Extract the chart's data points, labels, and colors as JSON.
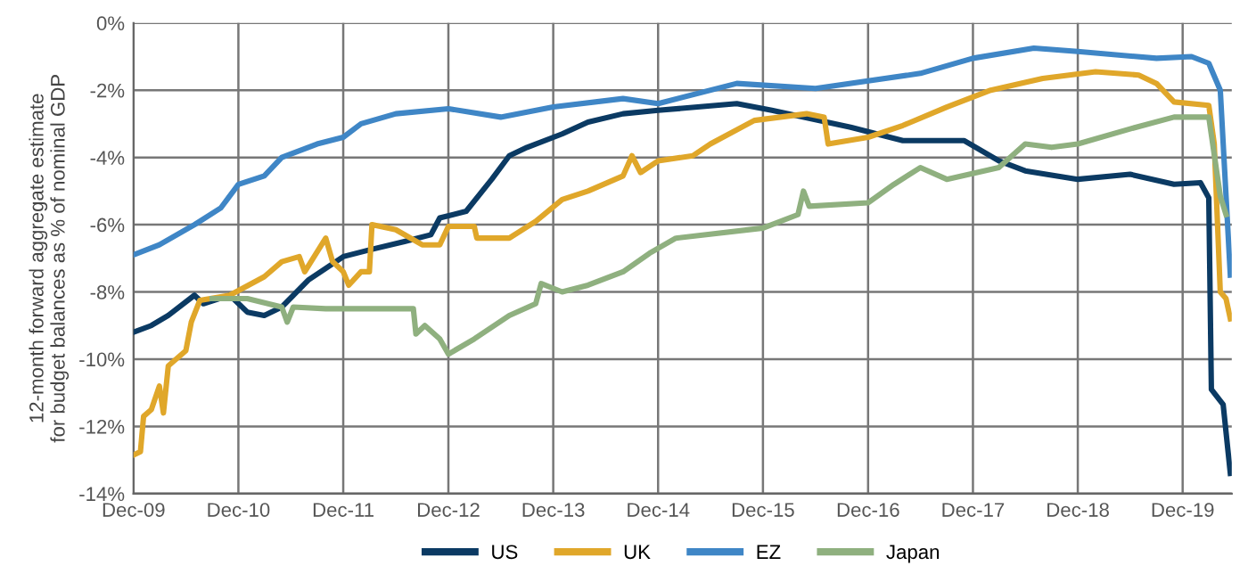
{
  "chart_data": {
    "type": "line",
    "ylabel": "12-month forward aggregate estimate\nfor budget balances as % of nominal GDP",
    "xlim": [
      "2009-12-01",
      "2020-05-20"
    ],
    "xticks": [
      {
        "value": "2009-12-01",
        "label": "Dec-09"
      },
      {
        "value": "2010-12-01",
        "label": "Dec-10"
      },
      {
        "value": "2011-12-01",
        "label": "Dec-11"
      },
      {
        "value": "2012-12-01",
        "label": "Dec-12"
      },
      {
        "value": "2013-12-01",
        "label": "Dec-13"
      },
      {
        "value": "2014-12-01",
        "label": "Dec-14"
      },
      {
        "value": "2015-12-01",
        "label": "Dec-15"
      },
      {
        "value": "2016-12-01",
        "label": "Dec-16"
      },
      {
        "value": "2017-12-01",
        "label": "Dec-17"
      },
      {
        "value": "2018-12-01",
        "label": "Dec-18"
      },
      {
        "value": "2019-12-01",
        "label": "Dec-19"
      }
    ],
    "ylim": [
      -14,
      0
    ],
    "yticks": [
      {
        "value": -14,
        "label": "-14%"
      },
      {
        "value": -12,
        "label": "-12%"
      },
      {
        "value": -10,
        "label": "-10%"
      },
      {
        "value": -8,
        "label": "-8%"
      },
      {
        "value": -6,
        "label": "-6%"
      },
      {
        "value": -4,
        "label": "-4%"
      },
      {
        "value": -2,
        "label": "-2%"
      },
      {
        "value": 0,
        "label": "0%"
      }
    ],
    "grid": true,
    "legend": "bottom",
    "marker": "none",
    "line_style": "solid",
    "series": [
      {
        "name": "US",
        "color": "#0b3a63",
        "x": [
          "2009-12-01",
          "2010-02-01",
          "2010-04-01",
          "2010-07-01",
          "2010-08-01",
          "2010-11-01",
          "2011-01-01",
          "2011-03-01",
          "2011-05-01",
          "2011-08-01",
          "2011-12-01",
          "2012-03-01",
          "2012-07-01",
          "2012-10-01",
          "2012-11-01",
          "2013-02-01",
          "2013-05-01",
          "2013-07-01",
          "2013-09-01",
          "2014-01-01",
          "2014-04-01",
          "2014-08-01",
          "2014-12-01",
          "2015-09-01",
          "2016-01-01",
          "2016-10-01",
          "2017-04-01",
          "2017-11-01",
          "2018-03-01",
          "2018-06-01",
          "2018-12-01",
          "2019-06-01",
          "2019-11-01",
          "2020-02-01",
          "2020-03-01",
          "2020-03-10",
          "2020-04-20",
          "2020-05-15"
        ],
        "values": [
          -9.2,
          -9.0,
          -8.7,
          -8.1,
          -8.35,
          -8.1,
          -8.6,
          -8.7,
          -8.45,
          -7.65,
          -6.95,
          -6.75,
          -6.5,
          -6.3,
          -5.8,
          -5.6,
          -4.65,
          -3.95,
          -3.7,
          -3.3,
          -2.95,
          -2.7,
          -2.6,
          -2.4,
          -2.6,
          -3.1,
          -3.5,
          -3.5,
          -4.1,
          -4.4,
          -4.65,
          -4.5,
          -4.8,
          -4.75,
          -5.2,
          -10.9,
          -11.35,
          -13.4
        ]
      },
      {
        "name": "UK",
        "color": "#e0a72a",
        "x": [
          "2009-12-01",
          "2009-12-25",
          "2010-01-05",
          "2010-02-01",
          "2010-03-01",
          "2010-03-15",
          "2010-04-01",
          "2010-06-01",
          "2010-06-20",
          "2010-07-20",
          "2010-11-01",
          "2011-03-01",
          "2011-05-01",
          "2011-07-01",
          "2011-07-20",
          "2011-10-01",
          "2011-10-25",
          "2011-12-01",
          "2011-12-20",
          "2012-02-01",
          "2012-03-01",
          "2012-03-10",
          "2012-06-01",
          "2012-09-01",
          "2012-11-01",
          "2012-12-01",
          "2013-03-01",
          "2013-03-10",
          "2013-07-01",
          "2013-10-01",
          "2014-01-01",
          "2014-04-01",
          "2014-08-01",
          "2014-09-01",
          "2014-10-01",
          "2014-12-01",
          "2015-04-01",
          "2015-06-01",
          "2015-11-01",
          "2016-05-01",
          "2016-07-01",
          "2016-07-15",
          "2016-12-01",
          "2017-04-01",
          "2017-09-01",
          "2018-02-01",
          "2018-08-01",
          "2019-02-01",
          "2019-07-01",
          "2019-09-01",
          "2019-11-01",
          "2020-03-01",
          "2020-03-20",
          "2020-04-10",
          "2020-04-30",
          "2020-05-15"
        ],
        "values": [
          -12.85,
          -12.75,
          -11.7,
          -11.5,
          -10.8,
          -11.6,
          -10.2,
          -9.75,
          -8.9,
          -8.25,
          -8.1,
          -7.55,
          -7.1,
          -6.95,
          -7.4,
          -6.4,
          -7.1,
          -7.4,
          -7.8,
          -7.4,
          -7.4,
          -6.0,
          -6.15,
          -6.6,
          -6.6,
          -6.05,
          -6.05,
          -6.4,
          -6.4,
          -5.9,
          -5.25,
          -5.0,
          -4.55,
          -3.95,
          -4.45,
          -4.1,
          -3.95,
          -3.6,
          -2.9,
          -2.7,
          -2.8,
          -3.6,
          -3.4,
          -3.05,
          -2.5,
          -2.0,
          -1.65,
          -1.45,
          -1.55,
          -1.8,
          -2.35,
          -2.45,
          -3.6,
          -8.0,
          -8.2,
          -8.8
        ]
      },
      {
        "name": "EZ",
        "color": "#3f86c6",
        "x": [
          "2009-12-01",
          "2010-03-01",
          "2010-07-01",
          "2010-10-01",
          "2010-12-01",
          "2011-03-01",
          "2011-05-01",
          "2011-09-01",
          "2011-12-01",
          "2012-02-01",
          "2012-06-01",
          "2012-12-01",
          "2013-06-01",
          "2013-12-01",
          "2014-08-01",
          "2014-12-01",
          "2015-09-01",
          "2016-06-01",
          "2017-06-01",
          "2017-12-01",
          "2018-07-01",
          "2018-12-01",
          "2019-09-01",
          "2020-01-01",
          "2020-03-01",
          "2020-04-10",
          "2020-05-15"
        ],
        "values": [
          -6.9,
          -6.6,
          -6.0,
          -5.5,
          -4.8,
          -4.55,
          -4.0,
          -3.6,
          -3.4,
          -3.0,
          -2.7,
          -2.55,
          -2.8,
          -2.5,
          -2.25,
          -2.4,
          -1.8,
          -1.95,
          -1.5,
          -1.05,
          -0.75,
          -0.85,
          -1.05,
          -1.0,
          -1.2,
          -2.0,
          -7.5
        ]
      },
      {
        "name": "Japan",
        "color": "#8fb07f",
        "x": [
          "2010-09-01",
          "2011-01-01",
          "2011-05-01",
          "2011-05-20",
          "2011-06-10",
          "2011-10-01",
          "2012-08-01",
          "2012-08-10",
          "2012-09-10",
          "2012-11-01",
          "2012-12-01",
          "2013-03-01",
          "2013-07-01",
          "2013-10-01",
          "2013-10-20",
          "2014-01-01",
          "2014-04-01",
          "2014-08-01",
          "2014-11-01",
          "2015-02-01",
          "2015-12-01",
          "2016-04-01",
          "2016-04-20",
          "2016-05-10",
          "2016-12-01",
          "2017-03-01",
          "2017-06-01",
          "2017-09-01",
          "2018-03-01",
          "2018-06-01",
          "2018-09-01",
          "2018-12-01",
          "2019-06-01",
          "2019-11-01",
          "2020-03-01",
          "2020-04-10",
          "2020-04-30"
        ],
        "values": [
          -8.2,
          -8.2,
          -8.45,
          -8.9,
          -8.45,
          -8.5,
          -8.5,
          -9.25,
          -9.0,
          -9.4,
          -9.85,
          -9.4,
          -8.7,
          -8.35,
          -7.75,
          -8.0,
          -7.8,
          -7.4,
          -6.85,
          -6.4,
          -6.1,
          -5.7,
          -5.0,
          -5.45,
          -5.35,
          -4.8,
          -4.3,
          -4.65,
          -4.3,
          -3.6,
          -3.7,
          -3.6,
          -3.15,
          -2.8,
          -2.8,
          -5.15,
          -5.7
        ]
      }
    ]
  }
}
